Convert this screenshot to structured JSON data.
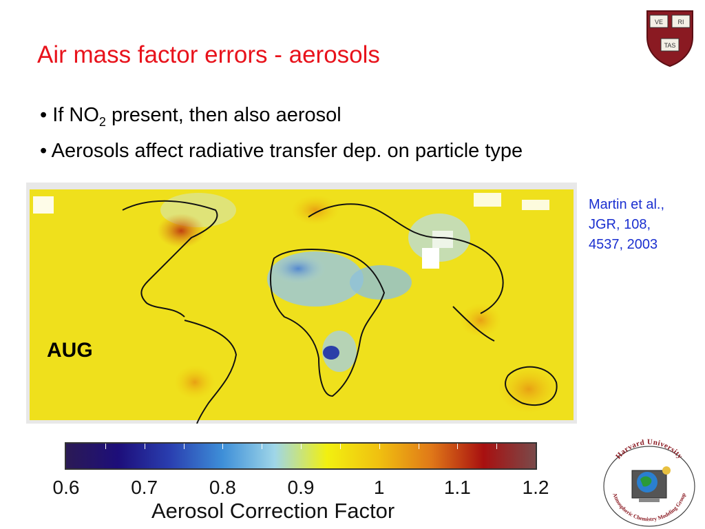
{
  "slide": {
    "title": "Air mass factor errors - aerosols",
    "bullets": [
      {
        "bullet": "•",
        "prefix": "If NO",
        "sub": "2",
        "suffix": "present, then also aerosol"
      },
      {
        "bullet": "•",
        "text": "Aerosols affect radiative transfer dep. on particle type"
      }
    ],
    "citation": [
      "Martin et al.,",
      "JGR, 108,",
      "4537, 2003"
    ]
  },
  "map": {
    "label": "AUG"
  },
  "colorbar": {
    "title": "Aerosol Correction Factor",
    "ticks": [
      "0.6",
      "0.7",
      "0.8",
      "0.9",
      "1",
      "1.1",
      "1.2"
    ],
    "colors": [
      "#2b1a55",
      "#1d0e7a",
      "#2a3fb0",
      "#3e8fd8",
      "#9fd6e8",
      "#f2f010",
      "#f0c010",
      "#e07818",
      "#a81010",
      "#7a4a4a"
    ]
  },
  "crest": {
    "letters": [
      "VE",
      "RI",
      "TAS"
    ]
  },
  "logo": {
    "top_text": "Harvard University",
    "bottom_text": "Atmospheric Chemistry Modeling Group"
  }
}
